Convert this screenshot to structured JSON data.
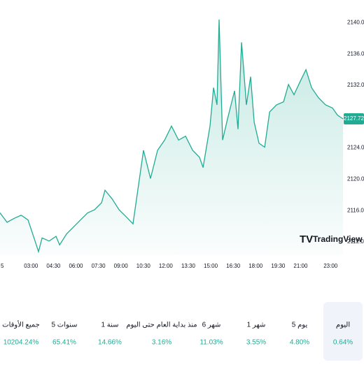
{
  "chart_data": {
    "type": "area",
    "color": "#22ab94",
    "grid": false,
    "x": [
      0.93,
      1.4,
      1.87,
      2.34,
      2.8,
      3.27,
      3.5,
      3.74,
      4.21,
      4.67,
      4.91,
      5.37,
      5.84,
      6.31,
      6.78,
      7.24,
      7.71,
      7.94,
      8.41,
      8.88,
      9.35,
      9.81,
      10.05,
      10.51,
      10.98,
      11.45,
      11.92,
      12.38,
      12.85,
      13.32,
      13.79,
      14.25,
      14.49,
      14.95,
      15.19,
      15.42,
      15.56,
      15.79,
      16.12,
      16.59,
      16.82,
      17.06,
      17.38,
      17.66,
      17.9,
      18.22,
      18.6,
      18.93,
      19.39,
      19.86,
      20.19,
      20.56,
      21.0,
      21.36,
      21.73,
      22.2,
      22.66,
      23.13,
      23.46,
      23.83
    ],
    "values": [
      2115.7,
      2114.5,
      2115.0,
      2115.4,
      2114.8,
      2112.1,
      2110.75,
      2112.5,
      2112.1,
      2112.7,
      2111.6,
      2113.0,
      2113.9,
      2114.8,
      2115.7,
      2116.1,
      2117.0,
      2118.6,
      2117.5,
      2116.1,
      2115.2,
      2114.3,
      2117.5,
      2123.7,
      2120.1,
      2123.7,
      2125.0,
      2126.8,
      2125.0,
      2125.5,
      2123.7,
      2122.8,
      2121.5,
      2126.8,
      2131.7,
      2129.5,
      2140.4,
      2125.0,
      2127.7,
      2131.3,
      2126.4,
      2137.5,
      2129.5,
      2133.1,
      2127.3,
      2124.6,
      2124.1,
      2128.6,
      2129.5,
      2129.9,
      2132.1,
      2130.8,
      2132.6,
      2134.0,
      2131.7,
      2130.4,
      2129.5,
      2129.1,
      2128.2,
      2127.72
    ],
    "xlim": [
      0.93,
      23.83
    ],
    "xticks": [
      {
        "value": 1.08,
        "label": "5"
      },
      {
        "value": 3,
        "label": "03:00"
      },
      {
        "value": 4.5,
        "label": "04:30"
      },
      {
        "value": 6,
        "label": "06:00"
      },
      {
        "value": 7.5,
        "label": "07:30"
      },
      {
        "value": 9,
        "label": "09:00"
      },
      {
        "value": 10.5,
        "label": "10:30"
      },
      {
        "value": 12,
        "label": "12:00"
      },
      {
        "value": 13.5,
        "label": "13:30"
      },
      {
        "value": 15,
        "label": "15:00"
      },
      {
        "value": 16.5,
        "label": "16:30"
      },
      {
        "value": 18,
        "label": "18:00"
      },
      {
        "value": 19.5,
        "label": "19:30"
      },
      {
        "value": 21,
        "label": "21:00"
      },
      {
        "value": 23,
        "label": "23:00"
      }
    ],
    "ylim": [
      2110.3,
      2142.9
    ],
    "yticks": [
      {
        "value": 2140,
        "label": "2140.00"
      },
      {
        "value": 2136,
        "label": "2136.00"
      },
      {
        "value": 2132,
        "label": "2132.00"
      },
      {
        "value": 2128,
        "label": "2128.00"
      },
      {
        "value": 2124,
        "label": "2124.00"
      },
      {
        "value": 2120,
        "label": "2120.00"
      },
      {
        "value": 2116,
        "label": "2116.00"
      },
      {
        "value": 2112,
        "label": "2112.00"
      }
    ],
    "watermark": "TradingView"
  },
  "performance": [
    {
      "label": "اليوم",
      "value": "0.64%"
    },
    {
      "label": "5 يوم",
      "value": "4.80%"
    },
    {
      "label": "1 شهر",
      "value": "3.55%"
    },
    {
      "label": "6 شهر",
      "value": "11.03%"
    },
    {
      "label": "منذ بداية العام حتى اليوم",
      "value": "3.16%"
    },
    {
      "label": "1 سنة",
      "value": "14.66%"
    },
    {
      "label": "5 سنوات",
      "value": "65.41%"
    },
    {
      "label": "جميع الأوقات",
      "value": "10204.24%"
    }
  ]
}
